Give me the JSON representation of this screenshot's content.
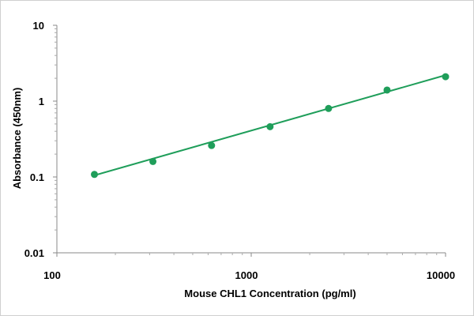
{
  "chart_data": {
    "type": "scatter",
    "title": "",
    "xlabel": "Mouse CHL1 Concentration (pg/ml)",
    "ylabel": "Absorbance (450nm)",
    "x_scale": "log",
    "y_scale": "log",
    "xlim": [
      100,
      10000
    ],
    "ylim": [
      0.01,
      10
    ],
    "x_ticks": [
      100,
      1000,
      10000
    ],
    "x_tick_labels": [
      "100",
      "1000",
      "10000"
    ],
    "y_ticks": [
      0.01,
      0.1,
      1,
      10
    ],
    "y_tick_labels": [
      "0.01",
      "0.1",
      "1",
      "10"
    ],
    "grid": false,
    "legend": "none",
    "color": "#1f9e5a",
    "series": [
      {
        "x": [
          156,
          312,
          625,
          1250,
          2500,
          5000,
          10000
        ],
        "y": [
          0.108,
          0.16,
          0.26,
          0.46,
          0.8,
          1.4,
          2.1
        ]
      }
    ],
    "fit_line": {
      "x": [
        156,
        10000
      ],
      "y": [
        0.105,
        2.2
      ]
    }
  }
}
